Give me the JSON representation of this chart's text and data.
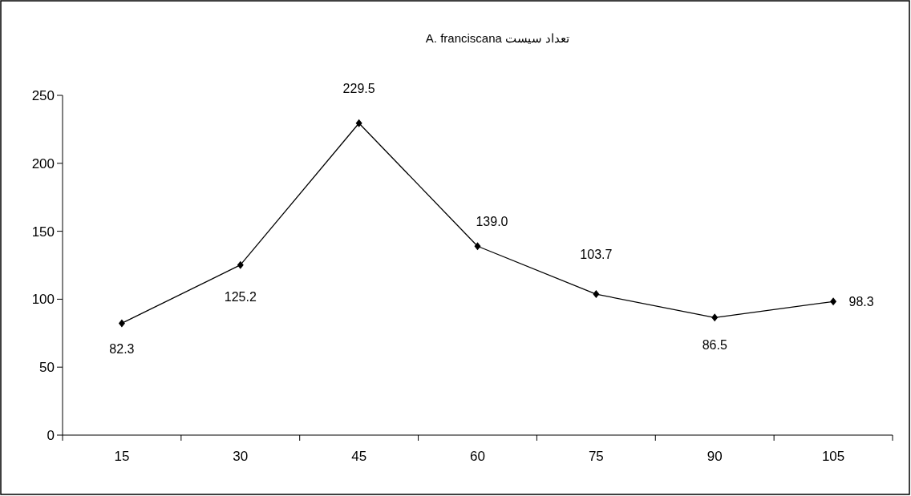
{
  "chart_data": {
    "type": "line",
    "title": "تعداد سیست A. franciscana",
    "categories": [
      "15",
      "30",
      "45",
      "60",
      "75",
      "90",
      "105"
    ],
    "values": [
      82.3,
      125.2,
      229.5,
      139.0,
      103.7,
      86.5,
      98.3
    ],
    "value_labels": [
      "82.3",
      "125.2",
      "229.5",
      "139.0",
      "103.7",
      "86.5",
      "98.3"
    ],
    "color": "#000000",
    "marker": "diamond",
    "line_style": "solid",
    "ylim": [
      0,
      250
    ],
    "yticks": [
      0,
      50,
      100,
      150,
      200,
      250
    ],
    "grid": false
  }
}
